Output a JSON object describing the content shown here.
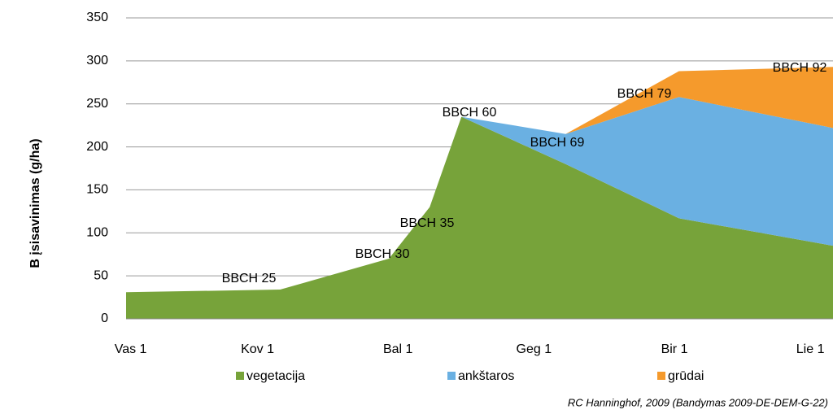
{
  "chart_data": {
    "type": "stacked_area",
    "y_label": "B įsisavinimas (g/ha)",
    "footnote": "RC Hanninghof, 2009 (Bandymas 2009-DE-DEM-G-22)",
    "x": [
      -1,
      33,
      57,
      66,
      73,
      96,
      121,
      155
    ],
    "xlim": [
      -1,
      155
    ],
    "xticks": [
      {
        "value": 0,
        "label": "Vas 1"
      },
      {
        "value": 28,
        "label": "Kov 1"
      },
      {
        "value": 59,
        "label": "Bal 1"
      },
      {
        "value": 89,
        "label": "Geg 1"
      },
      {
        "value": 120,
        "label": "Bir 1"
      },
      {
        "value": 150,
        "label": "Lie 1"
      }
    ],
    "ylim": [
      0,
      350
    ],
    "yticks": [
      0,
      50,
      100,
      150,
      200,
      250,
      300,
      350
    ],
    "grid": true,
    "legend": "bottom",
    "series": [
      {
        "name": "vegetacija",
        "color": "#77a33a",
        "values": [
          31,
          34,
          70,
          130,
          235,
          180,
          117,
          85
        ]
      },
      {
        "name": "ankštaros",
        "color": "#6ab0e2",
        "values": [
          0,
          0,
          0,
          0,
          0,
          35,
          141,
          137
        ]
      },
      {
        "name": "grūdai",
        "color": "#f59a2c",
        "values": [
          0,
          0,
          0,
          0,
          0,
          0,
          30,
          71
        ]
      }
    ],
    "annotations": [
      "BBCH 25",
      "BBCH 30",
      "BBCH 35",
      "BBCH 60",
      "BBCH 69",
      "BBCH 79",
      "BBCH 92"
    ]
  }
}
